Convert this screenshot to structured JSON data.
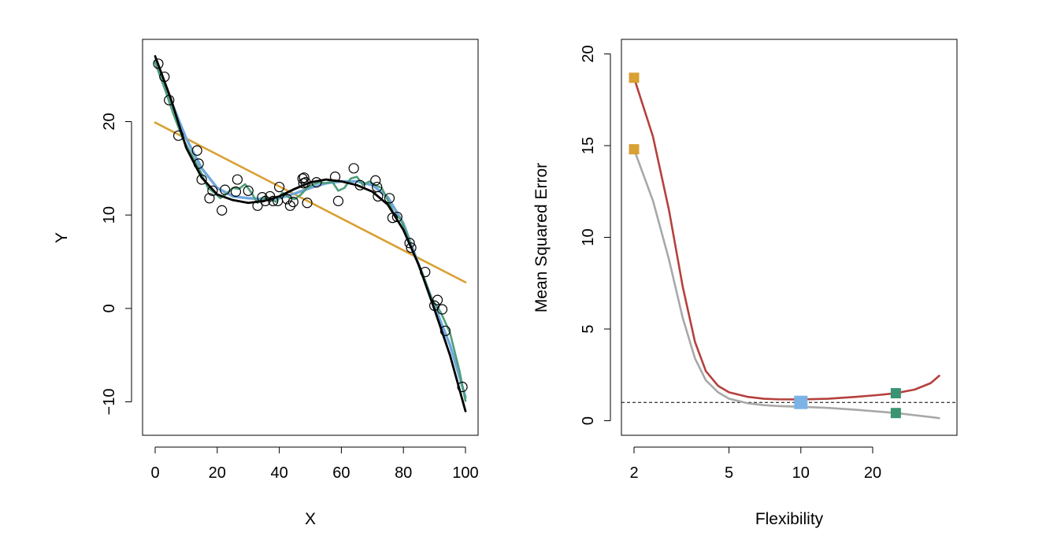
{
  "colors": {
    "linear": "#D9A033",
    "smooth_blue": "#6FA8DC",
    "smooth_green": "#4E9E7A",
    "truth": "#000000",
    "test_mse": "#B5403D",
    "train_mse": "#A8A8A8",
    "marker_blue": "#7BB3E6",
    "marker_green": "#3A9471"
  },
  "chart_data": [
    {
      "type": "scatter",
      "xlabel": "X",
      "ylabel": "Y",
      "xlim": [
        0,
        100
      ],
      "ylim": [
        -12,
        28
      ],
      "xticks": [
        0,
        20,
        40,
        60,
        80,
        100
      ],
      "yticks": [
        -10,
        0,
        10,
        20
      ],
      "points": {
        "x": [
          1,
          3,
          4.5,
          7.5,
          13.5,
          14,
          15,
          17.5,
          18.5,
          21.5,
          22.5,
          26,
          26.5,
          30,
          33,
          34.5,
          35.5,
          37,
          38,
          39.5,
          40,
          42.5,
          43.5,
          44.5,
          47.5,
          47.8,
          48,
          48.5,
          49,
          52,
          58,
          59,
          64,
          66,
          71,
          71.5,
          71.8,
          75.5,
          76.5,
          78,
          82,
          82.5,
          87,
          90,
          91,
          92.5,
          93.5,
          99
        ],
        "y": [
          26.2,
          24.8,
          22.3,
          18.5,
          16.9,
          15.5,
          13.8,
          11.8,
          12.6,
          10.5,
          12.7,
          12.5,
          13.8,
          12.6,
          11,
          11.9,
          11.5,
          12,
          11.5,
          11.5,
          13,
          11.7,
          11,
          11.4,
          13.9,
          13.4,
          14,
          13.5,
          11.3,
          13.5,
          14.1,
          11.5,
          15,
          13.2,
          13.7,
          13,
          12,
          11.8,
          9.7,
          9.8,
          7,
          6.5,
          3.9,
          0.3,
          0.9,
          -0.1,
          -2.4,
          -8.4
        ]
      },
      "series": [
        {
          "type": "line",
          "x": [
            0,
            100
          ],
          "y": [
            19.9,
            2.8
          ]
        },
        {
          "type": "line",
          "x": [
            0,
            5,
            10,
            15,
            20,
            25,
            30,
            35,
            40,
            45,
            50,
            55,
            60,
            65,
            70,
            75,
            80,
            85,
            90,
            95,
            100
          ],
          "y": [
            26.5,
            22.3,
            18.2,
            15,
            12.9,
            12,
            11.8,
            11.7,
            11.8,
            12.3,
            12.9,
            13.4,
            13.6,
            13.6,
            13.2,
            11.9,
            9.1,
            4.6,
            0.3,
            -3.9,
            -9.5
          ]
        },
        {
          "type": "line",
          "x": [
            0,
            3,
            6,
            9,
            12,
            15,
            17,
            19,
            21,
            23,
            25,
            27,
            29,
            31,
            33,
            35,
            37,
            39,
            41,
            43,
            45,
            47,
            49,
            51,
            53,
            55,
            57,
            59,
            61,
            63,
            65,
            67,
            69,
            71,
            73,
            75,
            77,
            79,
            81,
            83,
            86,
            89,
            92,
            95,
            98,
            100
          ],
          "y": [
            26.3,
            23.6,
            20.7,
            18.1,
            16.3,
            14.4,
            12.9,
            12.4,
            11.8,
            12.3,
            12.9,
            12.8,
            13.3,
            12.4,
            11.3,
            11.8,
            11.8,
            11.4,
            12.4,
            11.9,
            11.7,
            12.2,
            12.9,
            13.3,
            13.5,
            13.4,
            13.6,
            12.6,
            12.9,
            13.9,
            14.1,
            13.2,
            13.6,
            13.2,
            12.9,
            11.6,
            10.1,
            9.6,
            8.1,
            6.1,
            3.9,
            1.1,
            -0.4,
            -2.6,
            -6.6,
            -9.9
          ]
        },
        {
          "type": "line",
          "x": [
            0,
            5,
            10,
            15,
            20,
            25,
            30,
            35,
            40,
            45,
            50,
            55,
            60,
            65,
            70,
            75,
            80,
            85,
            90,
            95,
            100
          ],
          "y": [
            27,
            22.5,
            17.2,
            14,
            12.2,
            11.6,
            11.3,
            11.5,
            12,
            12.8,
            13.5,
            13.8,
            13.6,
            13.2,
            12.5,
            11.1,
            8.4,
            4.6,
            -0.1,
            -5,
            -11
          ]
        }
      ]
    },
    {
      "type": "line",
      "xscale": "log",
      "xlabel": "Flexibility",
      "ylabel": "Mean Squared Error",
      "xlim": [
        2,
        40
      ],
      "ylim": [
        -1,
        21
      ],
      "xticks": [
        2,
        5,
        10,
        20
      ],
      "yticks": [
        0,
        5,
        10,
        15,
        20
      ],
      "reference_line": {
        "y": 1,
        "style": "dashed"
      },
      "series": [
        {
          "x": [
            2,
            2.4,
            2.8,
            3.2,
            3.6,
            4,
            4.5,
            5,
            6,
            7,
            8,
            10,
            13,
            17,
            21,
            25,
            30,
            35,
            38
          ],
          "y": [
            18.7,
            15.5,
            11.5,
            7.3,
            4.3,
            2.7,
            1.9,
            1.55,
            1.3,
            1.2,
            1.17,
            1.16,
            1.2,
            1.3,
            1.4,
            1.5,
            1.7,
            2.05,
            2.45
          ]
        },
        {
          "x": [
            2,
            2.4,
            2.8,
            3.2,
            3.6,
            4,
            4.5,
            5,
            6,
            7,
            8,
            10,
            13,
            17,
            21,
            25,
            30,
            35,
            38
          ],
          "y": [
            14.8,
            12,
            8.8,
            5.6,
            3.4,
            2.2,
            1.55,
            1.2,
            0.95,
            0.85,
            0.8,
            0.76,
            0.7,
            0.6,
            0.5,
            0.42,
            0.3,
            0.2,
            0.14
          ]
        }
      ],
      "markers": [
        {
          "x": 2,
          "y": 18.7
        },
        {
          "x": 2,
          "y": 14.8
        },
        {
          "x": 10,
          "y": 1.0
        },
        {
          "x": 25,
          "y": 1.5
        },
        {
          "x": 25,
          "y": 0.42
        }
      ]
    }
  ]
}
